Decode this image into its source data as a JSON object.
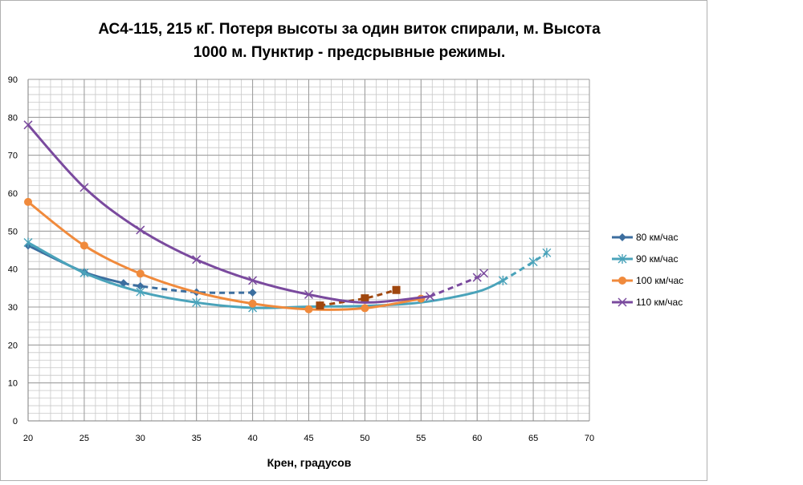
{
  "chart_data": {
    "type": "line",
    "title_lines": [
      "АС4-115, 215 кГ. Потеря высоты за один виток спирали, м. Высота",
      "1000 м. Пунктир - предсрывные режимы."
    ],
    "xlabel": "Крен, градусов",
    "ylabel": "",
    "xlim": [
      20,
      70
    ],
    "ylim": [
      0,
      90
    ],
    "x_ticks": [
      20,
      25,
      30,
      35,
      40,
      45,
      50,
      55,
      60,
      65,
      70
    ],
    "y_ticks": [
      0,
      10,
      20,
      30,
      40,
      50,
      60,
      70,
      80,
      90
    ],
    "grid": true,
    "legend_position": "right",
    "series": [
      {
        "name": "80 км/час",
        "color": "#3c6e9f",
        "marker": "diamond",
        "solid": [
          [
            20,
            46.2
          ],
          [
            25,
            39.2
          ],
          [
            28.5,
            36.3
          ]
        ],
        "dashed": [
          [
            28.5,
            36.3
          ],
          [
            30,
            35.5
          ],
          [
            35,
            33.9
          ],
          [
            40,
            33.8
          ]
        ],
        "markers": [
          [
            20,
            46.2
          ],
          [
            25,
            39.2
          ],
          [
            28.5,
            36.3
          ],
          [
            30,
            35.5
          ],
          [
            35,
            33.9
          ],
          [
            40,
            33.8
          ]
        ]
      },
      {
        "name": "90 км/час",
        "color": "#4aa3ba",
        "marker": "star",
        "solid": [
          [
            20,
            47
          ],
          [
            25,
            39
          ],
          [
            30,
            34
          ],
          [
            35,
            31.2
          ],
          [
            40,
            29.8
          ],
          [
            45,
            30.1
          ],
          [
            50,
            30.3
          ],
          [
            55,
            31.2
          ],
          [
            60,
            34
          ],
          [
            62.3,
            37
          ]
        ],
        "dashed": [
          [
            62.3,
            37
          ],
          [
            65,
            41.9
          ],
          [
            66.2,
            44.3
          ]
        ],
        "markers": [
          [
            20,
            47
          ],
          [
            25,
            39
          ],
          [
            30,
            34
          ],
          [
            35,
            31.2
          ],
          [
            40,
            29.8
          ],
          [
            62.3,
            37
          ],
          [
            65,
            41.9
          ],
          [
            66.2,
            44.3
          ]
        ]
      },
      {
        "name": "100 км/час",
        "color": "#f08a3c",
        "marker": "circle",
        "solid": [
          [
            20,
            57.7
          ],
          [
            25,
            46.2
          ],
          [
            30,
            38.8
          ],
          [
            35,
            33.9
          ],
          [
            40,
            30.9
          ],
          [
            45,
            29.4
          ],
          [
            50,
            29.7
          ],
          [
            55,
            32.2
          ]
        ],
        "dashed": [],
        "markers": [
          [
            20,
            57.7
          ],
          [
            25,
            46.2
          ],
          [
            30,
            38.8
          ],
          [
            40,
            30.9
          ],
          [
            45,
            29.4
          ],
          [
            50,
            29.7
          ],
          [
            55,
            32.2
          ]
        ],
        "extra": {
          "color": "#a0470e",
          "marker": "square",
          "points": [
            [
              46,
              30.4
            ],
            [
              50,
              32.3
            ],
            [
              52.8,
              34.5
            ]
          ]
        }
      },
      {
        "name": "110 км/час",
        "color": "#7a4a9e",
        "marker": "x",
        "solid": [
          [
            20,
            78
          ],
          [
            25,
            61.5
          ],
          [
            30,
            50.3
          ],
          [
            35,
            42.5
          ],
          [
            40,
            37
          ],
          [
            45,
            33.3
          ],
          [
            50,
            31.2
          ],
          [
            55.8,
            32.8
          ]
        ],
        "dashed": [
          [
            55.8,
            32.8
          ],
          [
            60,
            37.8
          ],
          [
            60.6,
            38.9
          ]
        ],
        "markers": [
          [
            20,
            78
          ],
          [
            25,
            61.5
          ],
          [
            30,
            50.3
          ],
          [
            35,
            42.5
          ],
          [
            40,
            37
          ],
          [
            45,
            33.3
          ],
          [
            55.8,
            32.8
          ],
          [
            60,
            37.8
          ],
          [
            60.6,
            38.9
          ]
        ]
      }
    ]
  }
}
